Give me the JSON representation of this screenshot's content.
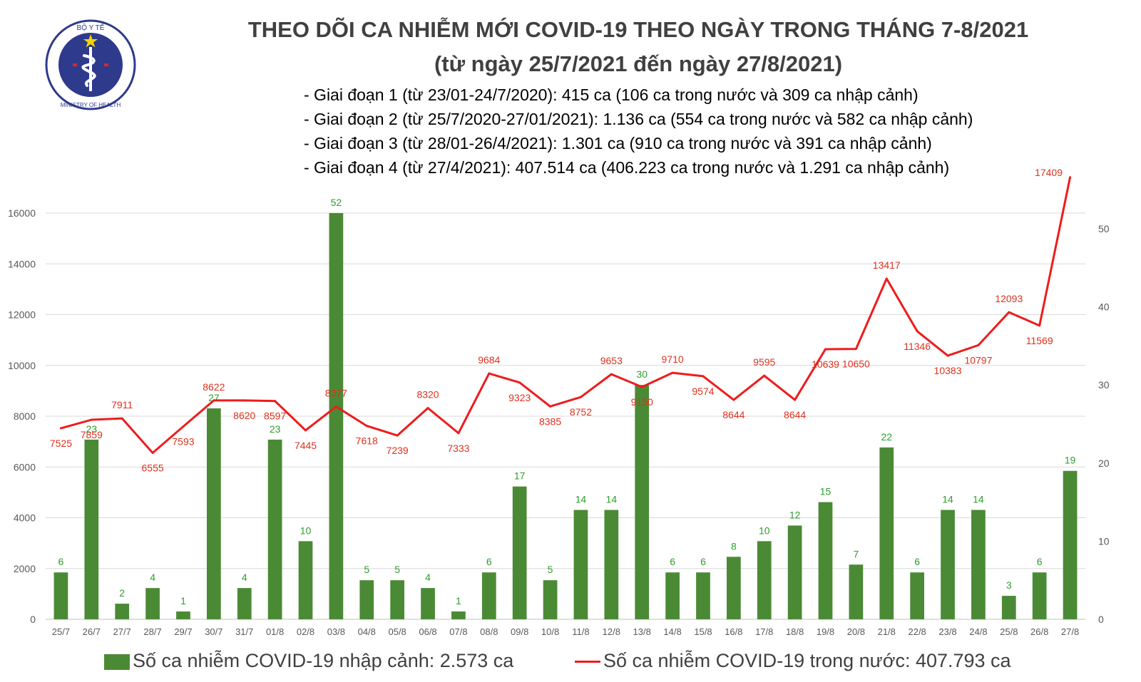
{
  "logo": {
    "top_text": "BỘ Y TẾ",
    "bottom_text": "MINISTRY OF HEALTH",
    "colors": {
      "ring": "#2e3a8c",
      "star": "#f5d300",
      "red": "#d7262d"
    }
  },
  "title_line1": "THEO DÕI CA NHIỄM MỚI COVID-19 THEO NGÀY TRONG THÁNG 7-8/2021",
  "title_line2": "(từ ngày 25/7/2021 đến ngày 27/8/2021)",
  "phases": [
    "- Giai đoạn 1 (từ 23/01-24/7/2020): 415 ca (106 ca trong nước và 309 ca nhập cảnh)",
    "- Giai đoạn 2 (từ 25/7/2020-27/01/2021): 1.136 ca (554 ca trong nước và 582 ca nhập cảnh)",
    "- Giai đoạn 3 (từ 28/01-26/4/2021): 1.301 ca (910 ca trong nước và 391 ca nhập cảnh)",
    "- Giai đoạn 4 (từ 27/4/2021): 407.514 ca (406.223 ca trong nước và 1.291 ca nhập cảnh)"
  ],
  "legend": {
    "bar_label": "Số ca nhiễm COVID-19 nhập cảnh: 2.573 ca",
    "line_label": "Số ca nhiễm COVID-19 trong nước: 407.793 ca"
  },
  "chart_data": {
    "type": "bar+line",
    "categories": [
      "25/7",
      "26/7",
      "27/7",
      "28/7",
      "29/7",
      "30/7",
      "31/7",
      "01/8",
      "02/8",
      "03/8",
      "04/8",
      "05/8",
      "06/8",
      "07/8",
      "08/8",
      "09/8",
      "10/8",
      "11/8",
      "12/8",
      "13/8",
      "14/8",
      "15/8",
      "16/8",
      "17/8",
      "18/8",
      "19/8",
      "20/8",
      "21/8",
      "22/8",
      "23/8",
      "24/8",
      "25/8",
      "26/8",
      "27/8"
    ],
    "series": [
      {
        "name": "Số ca nhiễm COVID-19 nhập cảnh: 2.573 ca",
        "type": "bar",
        "axis": "right",
        "color": "#4a8a35",
        "label_color": "#2e9e2e",
        "values": [
          6,
          23,
          2,
          4,
          1,
          27,
          4,
          23,
          10,
          52,
          5,
          5,
          4,
          1,
          6,
          17,
          5,
          14,
          14,
          30,
          6,
          6,
          8,
          10,
          12,
          15,
          7,
          22,
          6,
          14,
          14,
          3,
          6,
          19
        ]
      },
      {
        "name": "Số ca nhiễm COVID-19 trong nước: 407.793 ca",
        "type": "line",
        "axis": "left",
        "color": "#ee1c1c",
        "values": [
          7525,
          7859,
          7911,
          6555,
          7593,
          8622,
          8620,
          8597,
          7445,
          8377,
          7618,
          7239,
          8320,
          7333,
          9684,
          9323,
          8385,
          8752,
          9653,
          9150,
          9710,
          9574,
          8644,
          9595,
          8644,
          10639,
          10650,
          13417,
          11346,
          10383,
          10797,
          12093,
          11569,
          17409
        ]
      }
    ],
    "y_left": {
      "min": 0,
      "max": 16000,
      "ticks": [
        0,
        2000,
        4000,
        6000,
        8000,
        10000,
        12000,
        14000,
        16000
      ]
    },
    "y_right": {
      "min": 0,
      "max": 50,
      "ticks": [
        0,
        10,
        20,
        30,
        40,
        50
      ]
    },
    "grid": true,
    "legend_position": "bottom"
  }
}
